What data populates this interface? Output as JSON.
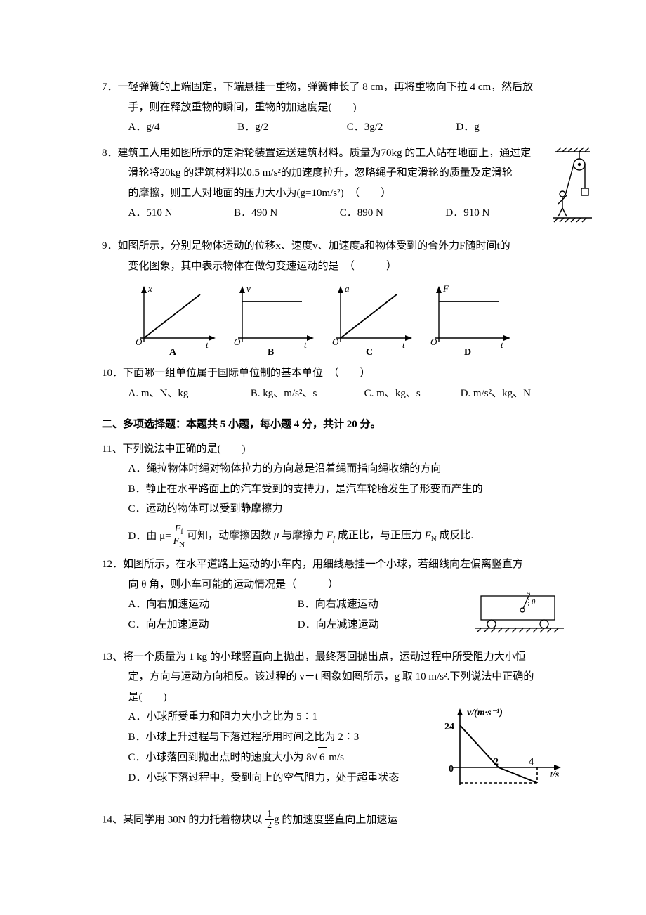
{
  "q7": {
    "num": "7．",
    "text1": "一轻弹簧的上端固定，下端悬挂一重物，弹簧伸长了 8 cm，再将重物向下拉 4 cm，然后放",
    "text2": "手，则在释放重物的瞬间，重物的加速度是(　　)",
    "opts": {
      "A": "A．g/4",
      "B": "B．g/2",
      "C": "C．3g/2",
      "D": "D．g"
    }
  },
  "q8": {
    "num": "8．",
    "text1": "建筑工人用如图所示的定滑轮装置运送建筑材料。质量为70kg 的工人站在地面上，通过定",
    "text2": "滑轮将20kg 的建筑材料以0.5 m/s²的加速度拉升，忽略绳子和定滑轮的质量及定滑轮",
    "text3": "的摩擦，则工人对地面的压力大小为(g=10m/s²)　（　　）",
    "opts": {
      "A": "A．510 N",
      "B": "B．490 N",
      "C": "C．890 N",
      "D": "D．910 N"
    },
    "fig": {
      "stroke": "#000000",
      "hatch": "#000000"
    }
  },
  "q9": {
    "num": "9．",
    "text1": "如图所示，分别是物体运动的位移x、速度v、加速度a和物体受到的合外力F随时间t的",
    "text2": "变化图象，其中表示物体在做匀变速运动的是　（　　　）",
    "graphs": {
      "axis_color": "#000000",
      "labels": [
        "A",
        "B",
        "C",
        "D"
      ],
      "ylabels": [
        "x",
        "v",
        "a",
        "F"
      ],
      "xlabel": "t",
      "types": [
        "linear-up",
        "flat",
        "linear-up",
        "flat"
      ]
    }
  },
  "q10": {
    "num": "10．",
    "text": "下面哪一组单位属于国际单位制的基本单位　（　　）",
    "opts": {
      "A": "A. m、N、kg",
      "B": "B. kg、m/s²、s",
      "C": "C. m、kg、s",
      "D": "D. m/s²、kg、N"
    }
  },
  "section2": "二、多项选择题：本题共 5 小题，每小题 4 分，共计 20 分。",
  "q11": {
    "num": "11、",
    "text": "下列说法中正确的是(　　)",
    "A": "A．绳拉物体时绳对物体拉力的方向总是沿着绳而指向绳收缩的方向",
    "B": "B．静止在水平路面上的汽车受到的支持力，是汽车轮胎发生了形变而产生的",
    "C": "C．运动的物体可以受到静摩擦力",
    "D_pre": "D．由 μ=",
    "D_frac_num": "Ff",
    "D_frac_den": "FN",
    "D_post": "可知，动摩擦因数 μ 与摩擦力 Ff 成正比，与正压力 FN 成反比.",
    "ital_F": "F",
    "sub_f": "f",
    "sub_N": "N"
  },
  "q12": {
    "num": "12．",
    "text1": "如图所示，在水平道路上运动的小车内，用细线悬挂一个小球，若细线向左偏离竖直方",
    "text2": "向 θ 角，则小车可能的运动情况是（　　　）",
    "opts": {
      "A": "A．向右加速运动",
      "B": "B．向右减速运动",
      "C": "C．向左加速运动",
      "D": "D．向左减速运动"
    },
    "fig": {
      "stroke": "#000000"
    }
  },
  "q13": {
    "num": "13、",
    "text1": "将一个质量为 1 kg 的小球竖直向上抛出，最终落回抛出点，运动过程中所受阻力大小恒",
    "text2": "定，方向与运动方向相反。该过程的 v－t 图象如图所示，g 取 10 m/s².下列说法中正确的",
    "text3": "是(　　)",
    "A": "A．小球所受重力和阻力大小之比为 5∶1",
    "B": "B．小球上升过程与下落过程所用时间之比为 2∶3",
    "C_pre": "C．小球落回到抛出点时的速度大小为 8",
    "C_sqrt": "6",
    "C_post": " m/s",
    "D": "D．小球下落过程中，受到向上的空气阻力，处于超重状态",
    "graph": {
      "ylabel": "v/(m·s⁻¹)",
      "xlabel": "t/s",
      "y_max_label": "24",
      "x_ticks": [
        "2",
        "4"
      ],
      "axis_color": "#000000",
      "data_points": {
        "x": [
          0,
          2,
          4
        ],
        "y": [
          24,
          0,
          -10
        ]
      },
      "dash_y": -10
    }
  },
  "q14": {
    "num": "14、",
    "pre": "某同学用 30N 的力托着物块以 ",
    "frac_num": "1",
    "frac_den": "2",
    "post": "g 的加速度竖直向上加速运"
  }
}
